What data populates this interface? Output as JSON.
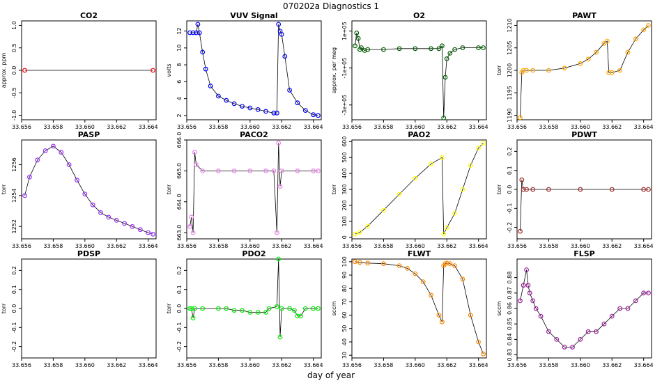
{
  "figure": {
    "title": "070202a    Diagnostics 1",
    "xlabel": "day of year"
  },
  "chart_data": [
    {
      "id": "co2",
      "type": "scatter",
      "title": "CO2",
      "ylabel": "approx. ppm",
      "color": "#ff0000",
      "xlim": [
        33.656,
        33.6645
      ],
      "ylim": [
        -1.1,
        1.1
      ],
      "yticks": [
        -1.0,
        -0.5,
        0.0,
        0.5,
        1.0
      ],
      "ytick_labels": [
        "-1.0",
        "-0.5",
        "0.0",
        "0.5",
        "1.0"
      ],
      "xticks": [
        33.656,
        33.658,
        33.66,
        33.662,
        33.664
      ],
      "xtick_labels": [
        "33.656",
        "33.658",
        "33.660",
        "33.662",
        "33.664"
      ],
      "series": [
        {
          "x": [
            33.6562,
            33.6643
          ],
          "y": [
            0,
            0
          ]
        }
      ]
    },
    {
      "id": "vuv",
      "type": "scatter",
      "title": "VUV Signal",
      "ylabel": "volts",
      "color": "#0000ff",
      "xlim": [
        33.656,
        33.6645
      ],
      "ylim": [
        1.5,
        13.2
      ],
      "yticks": [
        2,
        4,
        6,
        8,
        10,
        12
      ],
      "ytick_labels": [
        "2",
        "4",
        "6",
        "8",
        "10",
        "12"
      ],
      "xticks": [
        33.656,
        33.658,
        33.66,
        33.662,
        33.664
      ],
      "xtick_labels": [
        "33.656",
        "33.658",
        "33.660",
        "33.662",
        "33.664"
      ],
      "series": [
        {
          "x": [
            33.6562,
            33.6564,
            33.6566,
            33.6567,
            33.6568,
            33.657,
            33.6572,
            33.6575,
            33.658,
            33.6585,
            33.659,
            33.6595,
            33.66,
            33.6605,
            33.661,
            33.6615,
            33.6617,
            33.6618,
            33.6619,
            33.662,
            33.6622,
            33.6625,
            33.663,
            33.6635,
            33.664,
            33.6643
          ],
          "y": [
            11.8,
            11.8,
            11.8,
            12.8,
            11.8,
            9.5,
            7.5,
            5.5,
            4.3,
            3.8,
            3.4,
            3.1,
            2.9,
            2.7,
            2.5,
            2.3,
            2.3,
            12.8,
            12.0,
            11.6,
            9.0,
            5.0,
            3.5,
            2.6,
            2.1,
            2.0
          ]
        }
      ]
    },
    {
      "id": "o2",
      "type": "scatter",
      "title": "O2",
      "ylabel": "approx. per meg",
      "color": "#006400",
      "xlim": [
        33.656,
        33.6645
      ],
      "ylim": [
        -380000,
        155000
      ],
      "yticks": [
        -300000,
        -100000,
        100000
      ],
      "ytick_labels": [
        "-3e+05",
        "-1e+05",
        "1e+05"
      ],
      "xticks": [
        33.656,
        33.658,
        33.66,
        33.662,
        33.664
      ],
      "xtick_labels": [
        "33.656",
        "33.658",
        "33.660",
        "33.662",
        "33.664"
      ],
      "series": [
        {
          "x": [
            33.6562,
            33.6563,
            33.6564,
            33.6565,
            33.6566,
            33.6568,
            33.657,
            33.658,
            33.659,
            33.66,
            33.661,
            33.6615,
            33.6617,
            33.6618,
            33.6619,
            33.662,
            33.6622,
            33.6625,
            33.663,
            33.664,
            33.6643
          ],
          "y": [
            20000,
            90000,
            60000,
            0,
            10000,
            -5000,
            0,
            0,
            5000,
            5000,
            5000,
            5000,
            20000,
            -370000,
            -150000,
            -50000,
            -20000,
            0,
            10000,
            10000,
            10000
          ]
        }
      ]
    },
    {
      "id": "pawt",
      "type": "scatter",
      "title": "PAWT",
      "ylabel": "torr",
      "color": "#ffa500",
      "xlim": [
        33.656,
        33.6645
      ],
      "ylim": [
        1189,
        1211
      ],
      "yticks": [
        1190,
        1195,
        1200,
        1205,
        1210
      ],
      "ytick_labels": [
        "1190",
        "1195",
        "1200",
        "1205",
        "1210"
      ],
      "xticks": [
        33.656,
        33.658,
        33.66,
        33.662,
        33.664
      ],
      "xtick_labels": [
        "33.656",
        "33.658",
        "33.660",
        "33.662",
        "33.664"
      ],
      "series": [
        {
          "x": [
            33.6562,
            33.6563,
            33.6564,
            33.6566,
            33.657,
            33.658,
            33.659,
            33.66,
            33.6605,
            33.661,
            33.6615,
            33.6617,
            33.6618,
            33.662,
            33.6625,
            33.663,
            33.6635,
            33.664,
            33.6643
          ],
          "y": [
            1189.5,
            1199.5,
            1200,
            1200,
            1200,
            1200,
            1200.5,
            1201.5,
            1202.5,
            1204,
            1206,
            1206.5,
            1199.5,
            1199.5,
            1200,
            1204,
            1207,
            1209,
            1210
          ]
        }
      ]
    },
    {
      "id": "pasp",
      "type": "scatter",
      "title": "PASP",
      "ylabel": "torr",
      "color": "#9b30ff",
      "xlim": [
        33.656,
        33.6645
      ],
      "ylim": [
        1251.2,
        1257.6
      ],
      "yticks": [
        1252,
        1254,
        1256
      ],
      "ytick_labels": [
        "1252",
        "1254",
        "1256"
      ],
      "xticks": [
        33.656,
        33.658,
        33.66,
        33.662,
        33.664
      ],
      "xtick_labels": [
        "33.656",
        "33.658",
        "33.660",
        "33.662",
        "33.664"
      ],
      "series": [
        {
          "x": [
            33.6562,
            33.6565,
            33.657,
            33.6575,
            33.658,
            33.6585,
            33.659,
            33.6595,
            33.66,
            33.6605,
            33.661,
            33.6615,
            33.662,
            33.6625,
            33.663,
            33.6635,
            33.664,
            33.6643
          ],
          "y": [
            1254.0,
            1255.2,
            1256.3,
            1256.9,
            1257.2,
            1256.8,
            1256.0,
            1255.0,
            1254.1,
            1253.4,
            1252.9,
            1252.6,
            1252.4,
            1252.2,
            1252.0,
            1251.8,
            1251.6,
            1251.5
          ]
        }
      ]
    },
    {
      "id": "paco2",
      "type": "scatter",
      "title": "PACO2",
      "ylabel": "torr",
      "color": "#ee82ee",
      "xlim": [
        33.656,
        33.6645
      ],
      "ylim": [
        662.8,
        666.0
      ],
      "yticks": [
        663.0,
        664.0,
        665.0,
        666.0
      ],
      "ytick_labels": [
        "663.0",
        "664.0",
        "665.0",
        "666.0"
      ],
      "xticks": [
        33.656,
        33.658,
        33.66,
        33.662,
        33.664
      ],
      "xtick_labels": [
        "33.656",
        "33.658",
        "33.660",
        "33.662",
        "33.664"
      ],
      "series": [
        {
          "x": [
            33.6562,
            33.6563,
            33.6564,
            33.6565,
            33.6566,
            33.657,
            33.658,
            33.659,
            33.66,
            33.661,
            33.6615,
            33.6617,
            33.6618,
            33.6619,
            33.662,
            33.663,
            33.664,
            33.6643
          ],
          "y": [
            663.2,
            663.5,
            663.0,
            665.6,
            665.2,
            665.0,
            665.0,
            665.0,
            665.0,
            665.0,
            665.0,
            663.0,
            665.9,
            664.5,
            665.0,
            665.0,
            665.0,
            665.0
          ]
        }
      ]
    },
    {
      "id": "pao2",
      "type": "scatter",
      "title": "PAO2",
      "ylabel": "torr",
      "color": "#ffff00",
      "xlim": [
        33.656,
        33.6645
      ],
      "ylim": [
        -10,
        610
      ],
      "yticks": [
        0,
        100,
        200,
        300,
        400,
        500,
        600
      ],
      "ytick_labels": [
        "0",
        "100",
        "200",
        "300",
        "400",
        "500",
        "600"
      ],
      "xticks": [
        33.656,
        33.658,
        33.66,
        33.662,
        33.664
      ],
      "xtick_labels": [
        "33.656",
        "33.658",
        "33.660",
        "33.662",
        "33.664"
      ],
      "series": [
        {
          "x": [
            33.6562,
            33.6565,
            33.657,
            33.658,
            33.659,
            33.66,
            33.661,
            33.6617,
            33.6618,
            33.662,
            33.6625,
            33.663,
            33.6635,
            33.664,
            33.6643
          ],
          "y": [
            20,
            30,
            70,
            170,
            270,
            370,
            460,
            500,
            20,
            60,
            150,
            300,
            450,
            560,
            590
          ]
        }
      ]
    },
    {
      "id": "pdwt",
      "type": "scatter",
      "title": "PDWT",
      "ylabel": "torr",
      "color": "#a52a2a",
      "xlim": [
        33.656,
        33.6645
      ],
      "ylim": [
        -0.26,
        0.26
      ],
      "yticks": [
        -0.2,
        -0.1,
        0.0,
        0.1,
        0.2
      ],
      "ytick_labels": [
        "-0.2",
        "-0.1",
        "0.0",
        "0.1",
        "0.2"
      ],
      "xticks": [
        33.656,
        33.658,
        33.66,
        33.662,
        33.664
      ],
      "xtick_labels": [
        "33.656",
        "33.658",
        "33.660",
        "33.662",
        "33.664"
      ],
      "series": [
        {
          "x": [
            33.6562,
            33.6563,
            33.6564,
            33.6566,
            33.657,
            33.658,
            33.66,
            33.662,
            33.664,
            33.6643
          ],
          "y": [
            -0.22,
            0.05,
            0.0,
            0.0,
            0.0,
            0.0,
            0.0,
            0.0,
            0.0,
            0.0
          ]
        }
      ]
    },
    {
      "id": "pdsp",
      "type": "scatter",
      "title": "PDSP",
      "ylabel": "torr",
      "color": "#000000",
      "xlim": [
        33.656,
        33.6645
      ],
      "ylim": [
        -0.26,
        0.26
      ],
      "yticks": [
        -0.2,
        -0.1,
        0.0,
        0.1,
        0.2
      ],
      "ytick_labels": [
        "-0.2",
        "-0.1",
        "0.0",
        "0.1",
        "0.2"
      ],
      "xticks": [
        33.656,
        33.658,
        33.66,
        33.662,
        33.664
      ],
      "xtick_labels": [
        "33.656",
        "33.658",
        "33.660",
        "33.662",
        "33.664"
      ],
      "series": []
    },
    {
      "id": "pdo2",
      "type": "scatter",
      "title": "PDO2",
      "ylabel": "torr",
      "color": "#00ee00",
      "xlim": [
        33.656,
        33.6645
      ],
      "ylim": [
        -0.26,
        0.26
      ],
      "yticks": [
        -0.2,
        -0.1,
        0.0,
        0.1,
        0.2
      ],
      "ytick_labels": [
        "-0.2",
        "-0.1",
        "0.0",
        "0.1",
        "0.2"
      ],
      "xticks": [
        33.656,
        33.658,
        33.66,
        33.662,
        33.664
      ],
      "xtick_labels": [
        "33.656",
        "33.658",
        "33.660",
        "33.662",
        "33.664"
      ],
      "series": [
        {
          "x": [
            33.6562,
            33.6563,
            33.6564,
            33.6565,
            33.657,
            33.658,
            33.6585,
            33.659,
            33.6595,
            33.66,
            33.6605,
            33.661,
            33.6612,
            33.6617,
            33.6618,
            33.6619,
            33.662,
            33.6625,
            33.6628,
            33.663,
            33.6632,
            33.6635,
            33.664,
            33.6643
          ],
          "y": [
            0.0,
            0.0,
            -0.05,
            0.0,
            0.0,
            0.0,
            0.0,
            -0.01,
            -0.01,
            -0.02,
            -0.02,
            -0.02,
            0.0,
            0.01,
            0.26,
            -0.15,
            0.0,
            0.0,
            -0.01,
            -0.04,
            -0.04,
            0.0,
            0.0,
            0.0
          ]
        }
      ]
    },
    {
      "id": "flwt",
      "type": "scatter",
      "title": "FLWT",
      "ylabel": "sccm",
      "color": "#ff8c00",
      "xlim": [
        33.656,
        33.6645
      ],
      "ylim": [
        28,
        102
      ],
      "yticks": [
        30,
        40,
        50,
        60,
        70,
        80,
        90,
        100
      ],
      "ytick_labels": [
        "30",
        "40",
        "50",
        "60",
        "70",
        "80",
        "90",
        "100"
      ],
      "xticks": [
        33.656,
        33.658,
        33.66,
        33.662,
        33.664
      ],
      "xtick_labels": [
        "33.656",
        "33.658",
        "33.660",
        "33.662",
        "33.664"
      ],
      "series": [
        {
          "x": [
            33.6562,
            33.6565,
            33.657,
            33.658,
            33.659,
            33.6595,
            33.66,
            33.6605,
            33.661,
            33.6615,
            33.6617,
            33.6618,
            33.6619,
            33.662,
            33.6622,
            33.6625,
            33.663,
            33.6635,
            33.664,
            33.6643
          ],
          "y": [
            100,
            99.5,
            99,
            98.5,
            97,
            95,
            91,
            85,
            75,
            60,
            55,
            97,
            98.5,
            99,
            98.5,
            97,
            87,
            60,
            40,
            31
          ]
        }
      ]
    },
    {
      "id": "flsp",
      "type": "scatter",
      "title": "FLSP",
      "ylabel": "sccm",
      "color": "#a020a0",
      "xlim": [
        33.656,
        33.6645
      ],
      "ylim": [
        0.828,
        0.892
      ],
      "yticks": [
        0.83,
        0.84,
        0.85,
        0.86,
        0.87,
        0.88
      ],
      "ytick_labels": [
        "0.83",
        "0.84",
        "0.85",
        "0.86",
        "0.87",
        "0.88"
      ],
      "xticks": [
        33.656,
        33.658,
        33.66,
        33.662,
        33.664
      ],
      "xtick_labels": [
        "33.656",
        "33.658",
        "33.660",
        "33.662",
        "33.664"
      ],
      "series": [
        {
          "x": [
            33.6562,
            33.6564,
            33.6566,
            33.6567,
            33.6568,
            33.657,
            33.6572,
            33.6575,
            33.658,
            33.6585,
            33.659,
            33.6595,
            33.66,
            33.6605,
            33.661,
            33.6615,
            33.662,
            33.6625,
            33.663,
            33.6635,
            33.664,
            33.6643
          ],
          "y": [
            0.865,
            0.875,
            0.885,
            0.875,
            0.87,
            0.865,
            0.86,
            0.855,
            0.845,
            0.84,
            0.835,
            0.835,
            0.84,
            0.845,
            0.845,
            0.85,
            0.855,
            0.86,
            0.86,
            0.865,
            0.87,
            0.87
          ]
        }
      ]
    }
  ]
}
